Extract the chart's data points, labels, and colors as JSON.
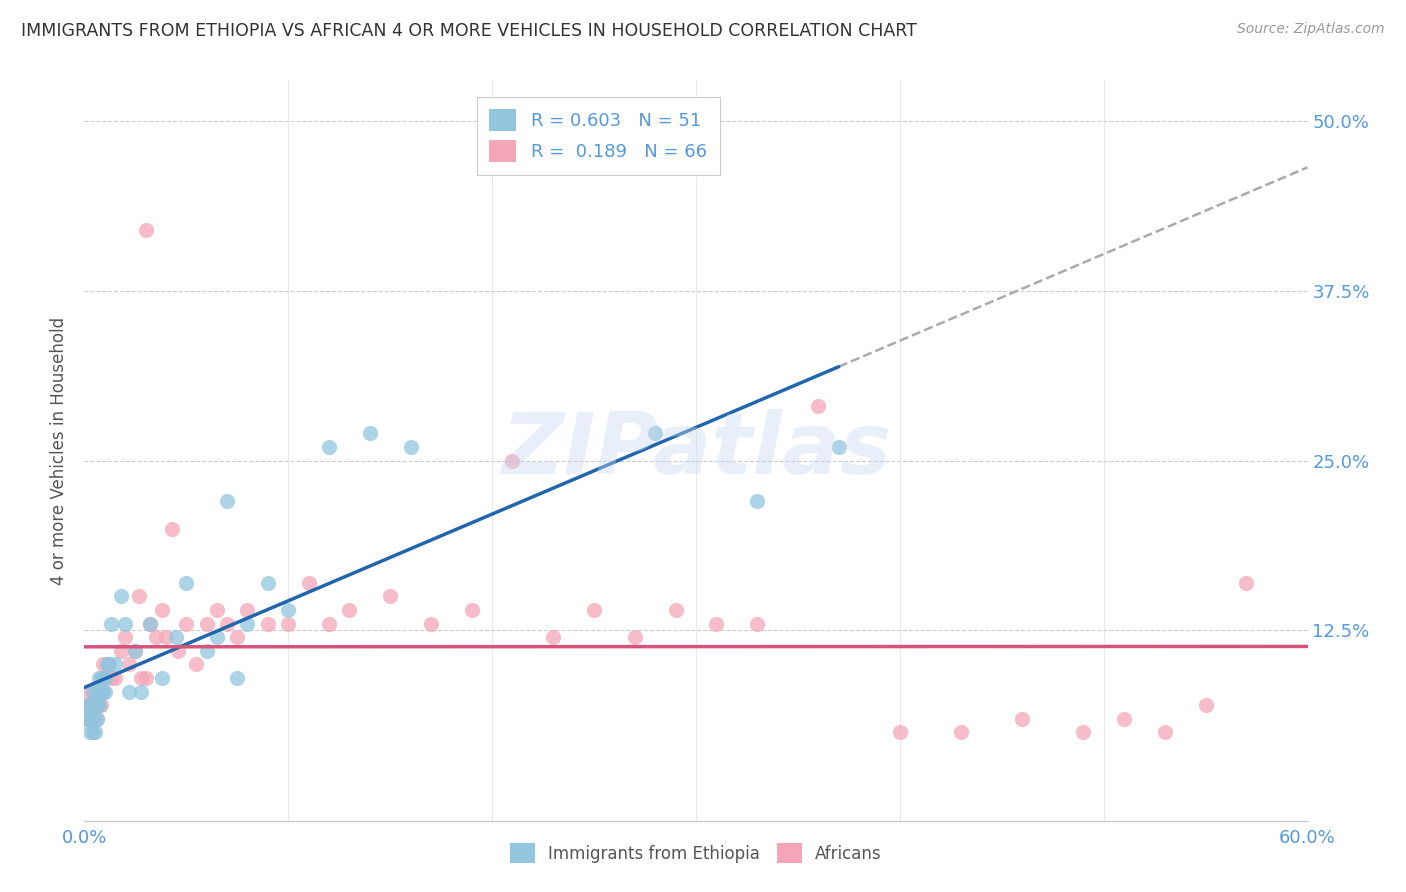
{
  "title": "IMMIGRANTS FROM ETHIOPIA VS AFRICAN 4 OR MORE VEHICLES IN HOUSEHOLD CORRELATION CHART",
  "source": "Source: ZipAtlas.com",
  "ylabel": "4 or more Vehicles in Household",
  "legend1_R": "0.603",
  "legend1_N": "51",
  "legend2_R": "0.189",
  "legend2_N": "66",
  "legend1_label": "Immigrants from Ethiopia",
  "legend2_label": "Africans",
  "blue_color": "#92c5de",
  "pink_color": "#f4a6b8",
  "line_blue": "#2166ac",
  "line_pink": "#d6547a",
  "dash_color": "#aaaaaa",
  "xmin": 0.0,
  "xmax": 0.6,
  "ymin": -0.015,
  "ymax": 0.53,
  "ytick_vals": [
    0.125,
    0.25,
    0.375,
    0.5
  ],
  "ytick_labels": [
    "12.5%",
    "25.0%",
    "37.5%",
    "50.0%"
  ],
  "blue_x": [
    0.001,
    0.002,
    0.002,
    0.003,
    0.003,
    0.003,
    0.004,
    0.004,
    0.004,
    0.005,
    0.005,
    0.005,
    0.005,
    0.006,
    0.006,
    0.006,
    0.007,
    0.007,
    0.007,
    0.008,
    0.008,
    0.009,
    0.009,
    0.01,
    0.01,
    0.011,
    0.012,
    0.013,
    0.015,
    0.018,
    0.02,
    0.022,
    0.025,
    0.028,
    0.032,
    0.038,
    0.045,
    0.05,
    0.06,
    0.065,
    0.07,
    0.075,
    0.08,
    0.09,
    0.1,
    0.12,
    0.14,
    0.16,
    0.28,
    0.33,
    0.37
  ],
  "blue_y": [
    0.06,
    0.07,
    0.06,
    0.07,
    0.06,
    0.05,
    0.08,
    0.07,
    0.05,
    0.07,
    0.07,
    0.06,
    0.05,
    0.08,
    0.07,
    0.06,
    0.09,
    0.08,
    0.07,
    0.09,
    0.08,
    0.09,
    0.08,
    0.09,
    0.08,
    0.1,
    0.1,
    0.13,
    0.1,
    0.15,
    0.13,
    0.08,
    0.11,
    0.08,
    0.13,
    0.09,
    0.12,
    0.16,
    0.11,
    0.12,
    0.22,
    0.09,
    0.13,
    0.16,
    0.14,
    0.26,
    0.27,
    0.26,
    0.27,
    0.22,
    0.26
  ],
  "pink_x": [
    0.001,
    0.001,
    0.002,
    0.002,
    0.003,
    0.003,
    0.004,
    0.004,
    0.005,
    0.005,
    0.006,
    0.006,
    0.007,
    0.007,
    0.008,
    0.008,
    0.009,
    0.01,
    0.011,
    0.013,
    0.015,
    0.018,
    0.02,
    0.022,
    0.025,
    0.028,
    0.03,
    0.032,
    0.035,
    0.038,
    0.04,
    0.043,
    0.046,
    0.05,
    0.055,
    0.06,
    0.065,
    0.07,
    0.075,
    0.08,
    0.09,
    0.1,
    0.11,
    0.12,
    0.13,
    0.15,
    0.17,
    0.19,
    0.21,
    0.23,
    0.25,
    0.27,
    0.29,
    0.31,
    0.33,
    0.36,
    0.4,
    0.43,
    0.46,
    0.49,
    0.51,
    0.53,
    0.55,
    0.57,
    0.03,
    0.027
  ],
  "pink_y": [
    0.06,
    0.07,
    0.07,
    0.06,
    0.08,
    0.07,
    0.08,
    0.06,
    0.07,
    0.06,
    0.07,
    0.06,
    0.07,
    0.08,
    0.08,
    0.07,
    0.1,
    0.09,
    0.1,
    0.09,
    0.09,
    0.11,
    0.12,
    0.1,
    0.11,
    0.09,
    0.09,
    0.13,
    0.12,
    0.14,
    0.12,
    0.2,
    0.11,
    0.13,
    0.1,
    0.13,
    0.14,
    0.13,
    0.12,
    0.14,
    0.13,
    0.13,
    0.16,
    0.13,
    0.14,
    0.15,
    0.13,
    0.14,
    0.25,
    0.12,
    0.14,
    0.12,
    0.14,
    0.13,
    0.13,
    0.29,
    0.05,
    0.05,
    0.06,
    0.05,
    0.06,
    0.05,
    0.07,
    0.16,
    0.42,
    0.15
  ],
  "watermark": "ZIPatlas"
}
